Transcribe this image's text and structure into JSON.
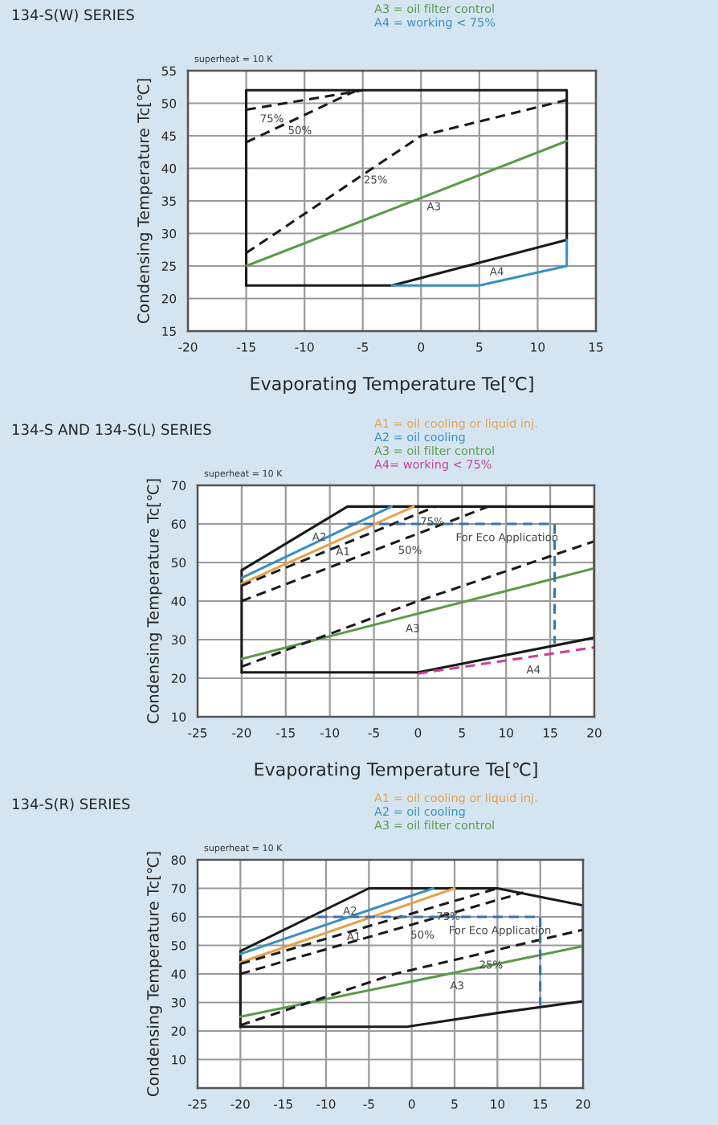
{
  "chart_data": [
    {
      "type": "line",
      "title": "134-S(W) SERIES",
      "xlabel": "Evaporating Temperature Te[℃]",
      "ylabel": "Condensing Temperature Tc[℃]",
      "xlim": [
        -20,
        15
      ],
      "xticks": [
        -20,
        -15,
        -10,
        -5,
        0,
        5,
        10,
        15
      ],
      "ylim": [
        15,
        55
      ],
      "yticks": [
        15,
        20,
        25,
        30,
        35,
        40,
        45,
        50,
        55
      ],
      "grid": true,
      "legend": "top right",
      "marker": "none",
      "series": [
        {
          "color": "#1a1a1a",
          "x": [
            -15,
            -15,
            12.5,
            12.5
          ],
          "values": [
            22,
            52,
            52,
            29
          ]
        },
        {
          "color": "#1a1a1a",
          "x": [
            12.5,
            -2.5,
            -15
          ],
          "values": [
            29,
            22,
            22
          ]
        },
        {
          "name": "A3 = oil filter control",
          "color": "#5b9a4a",
          "x": [
            -15,
            12.5
          ],
          "values": [
            25,
            44.2
          ]
        },
        {
          "name": "A4 = working < 75%",
          "color": "#3a8fc0",
          "x": [
            -2.5,
            5,
            12.5,
            12.5
          ],
          "values": [
            22,
            22,
            25,
            29
          ]
        },
        {
          "color": "#1a1a1a",
          "line_style": "dashed",
          "x": [
            -15,
            -5
          ],
          "values": [
            49,
            52
          ]
        },
        {
          "color": "#1a1a1a",
          "line_style": "dashed",
          "x": [
            -15,
            -5.5
          ],
          "values": [
            44,
            52
          ]
        },
        {
          "color": "#1a1a1a",
          "line_style": "dashed",
          "x": [
            -15,
            0,
            12.5
          ],
          "values": [
            27,
            45,
            50.5
          ]
        }
      ],
      "annotations": [
        "superheat = 10 K",
        {
          "text": "75%",
          "x": -12.8,
          "y": 49.7
        },
        {
          "text": "50%",
          "x": -10.4,
          "y": 47.9
        },
        {
          "text": "25%",
          "x": -3.9,
          "y": 40.3
        },
        {
          "text": "A3",
          "x": 1.1,
          "y": 36.2
        },
        {
          "text": "A4",
          "x": 6.5,
          "y": 26.2
        }
      ]
    },
    {
      "type": "line",
      "title": "134-S AND 134-S(L) SERIES",
      "xlabel": "Evaporating Temperature Te[℃]",
      "ylabel": "Condensing Temperature Tc[℃]",
      "xlim": [
        -25,
        20
      ],
      "xticks": [
        -25,
        -20,
        -15,
        -10,
        -5,
        0,
        5,
        10,
        15,
        20
      ],
      "ylim": [
        10,
        70
      ],
      "yticks": [
        10,
        20,
        30,
        40,
        50,
        60,
        70
      ],
      "grid": true,
      "legend": "top right",
      "marker": "none",
      "series": [
        {
          "color": "#1a1a1a",
          "x": [
            -20,
            -20,
            -8,
            20,
            20
          ],
          "values": [
            21.5,
            48,
            64.5,
            64.5,
            30.5
          ]
        },
        {
          "color": "#1a1a1a",
          "x": [
            20,
            0,
            -20
          ],
          "values": [
            30.5,
            21.5,
            21.5
          ]
        },
        {
          "name": "A1 = oil cooling or liquid inj.",
          "color": "#e8a048",
          "x": [
            -20,
            -0.5
          ],
          "values": [
            44.5,
            64.5
          ]
        },
        {
          "name": "A2 = oil cooling",
          "color": "#3a8fc0",
          "x": [
            -20,
            -3
          ],
          "values": [
            46,
            64.5
          ]
        },
        {
          "name": "A3 = oil filter control",
          "color": "#5b9a4a",
          "x": [
            -20,
            20
          ],
          "values": [
            25,
            48.5
          ]
        },
        {
          "name": "A4= working < 75%",
          "color": "#c8409a",
          "line_style": "dashed",
          "x": [
            0,
            20
          ],
          "values": [
            21.2,
            28
          ]
        },
        {
          "color": "#1a1a1a",
          "line_style": "dashed",
          "x": [
            -20,
            2
          ],
          "values": [
            44,
            64.5
          ]
        },
        {
          "color": "#1a1a1a",
          "line_style": "dashed",
          "x": [
            -20,
            8
          ],
          "values": [
            40,
            64.5
          ]
        },
        {
          "color": "#1a1a1a",
          "line_style": "dashed",
          "x": [
            -20,
            0,
            20
          ],
          "values": [
            23,
            40,
            55.5
          ]
        },
        {
          "color": "#3a70b0",
          "line_style": "dashed",
          "x": [
            -8,
            15.5,
            15.5
          ],
          "values": [
            60,
            60,
            29
          ]
        }
      ],
      "annotations": [
        "superheat = 10 K",
        {
          "text": "A2",
          "x": -11.2,
          "y": 60.1
        },
        {
          "text": "A1",
          "x": -8.5,
          "y": 56.3
        },
        {
          "text": "75%",
          "x": 1.6,
          "y": 64.1
        },
        {
          "text": "50%",
          "x": -0.9,
          "y": 56.7
        },
        {
          "text": "For Eco Application",
          "x": 10.1,
          "y": 60
        },
        {
          "text": "A3",
          "x": -0.6,
          "y": 36.4
        },
        {
          "text": "A4",
          "x": 13.1,
          "y": 25.7
        }
      ]
    },
    {
      "type": "line",
      "title": "134-S(R) SERIES",
      "ylabel": "Condensing Temperature Tc[℃]",
      "xlim": [
        -25,
        20
      ],
      "xticks": [
        -25,
        -20,
        -15,
        -10,
        -5,
        0,
        5,
        10,
        15,
        20
      ],
      "ylim": [
        0,
        80
      ],
      "yticks": [
        10,
        20,
        30,
        40,
        50,
        60,
        70,
        80
      ],
      "grid": true,
      "legend": "top right",
      "marker": "none",
      "series": [
        {
          "color": "#1a1a1a",
          "x": [
            -20,
            -20,
            -5,
            10,
            20,
            20
          ],
          "values": [
            21.5,
            48,
            70,
            70,
            64,
            30.4
          ]
        },
        {
          "color": "#1a1a1a",
          "x": [
            20,
            10,
            -0.5,
            -20
          ],
          "values": [
            30.4,
            26.3,
            21.5,
            21.5
          ]
        },
        {
          "name": "A1 = oil cooling or liquid inj.",
          "color": "#e8a048",
          "x": [
            -20,
            5
          ],
          "values": [
            44,
            70
          ]
        },
        {
          "name": "A2 = oil cooling",
          "color": "#3a8fc0",
          "x": [
            -20,
            2.5
          ],
          "values": [
            47,
            70
          ]
        },
        {
          "name": "A3 = oil filter control",
          "color": "#5b9a4a",
          "x": [
            -20,
            20
          ],
          "values": [
            25,
            49.7
          ]
        },
        {
          "color": "#1a1a1a",
          "line_style": "dashed",
          "x": [
            -20,
            10
          ],
          "values": [
            43.5,
            70
          ]
        },
        {
          "color": "#1a1a1a",
          "line_style": "dashed",
          "x": [
            -20,
            13
          ],
          "values": [
            40,
            68.5
          ]
        },
        {
          "color": "#1a1a1a",
          "line_style": "dashed",
          "x": [
            -20,
            -2,
            20
          ],
          "values": [
            22,
            40,
            55.5
          ]
        },
        {
          "color": "#3a70b0",
          "line_style": "dashed",
          "x": [
            -11,
            15,
            15
          ],
          "values": [
            60,
            60,
            29
          ]
        }
      ],
      "annotations": [
        "superheat = 10 K",
        {
          "text": "A2",
          "x": -7.2,
          "y": 66.8
        },
        {
          "text": "A1",
          "x": -6.75,
          "y": 57.8
        },
        {
          "text": "75%",
          "x": 4.25,
          "y": 64.9
        },
        {
          "text": "50%",
          "x": 1.25,
          "y": 58.4
        },
        {
          "text": "For Eco Application",
          "x": 10.3,
          "y": 60
        },
        {
          "text": "25%",
          "x": 9.25,
          "y": 47.9
        },
        {
          "text": "A3",
          "x": 5.3,
          "y": 40.6
        }
      ]
    }
  ]
}
